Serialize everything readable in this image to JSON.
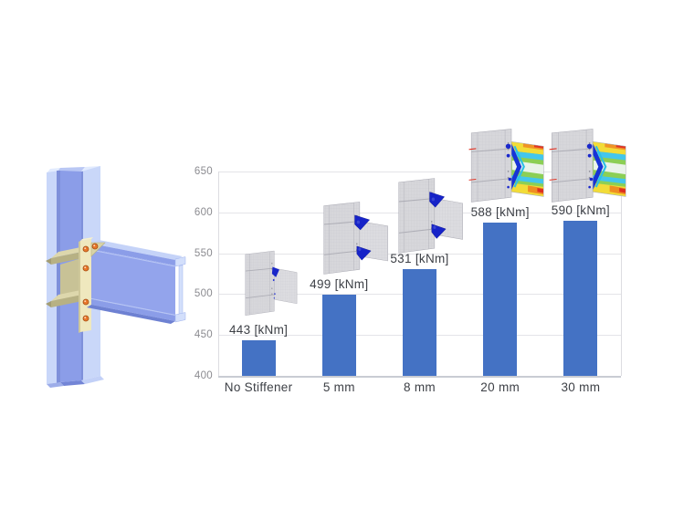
{
  "figure": {
    "background": "#ffffff",
    "left_graphic": "3D render of a bolted steel beam-to-column end-plate connection"
  },
  "model_3d": {
    "colors": {
      "flange_light": "#c9d7f9",
      "top_face": "#e2ebfe",
      "web_medium": "#8b9de8",
      "beam_web": "#93a4ec",
      "beam_top_face": "#c5d3f8",
      "underside": "#6e81d2",
      "edge_shadow": "#7e90da",
      "end_face": "#d3dffb",
      "plate_cream": "#efe8be",
      "plate_edge": "#cfc89a",
      "stiffener_tan": "#ddd7ac",
      "stiffener_edge": "#b7b184",
      "doubler_tan": "#c8c296",
      "bolt_orange": "#e8772b",
      "bolt_rim": "#a34d15"
    }
  },
  "chart_data": {
    "type": "bar",
    "title": "",
    "xlabel": "",
    "ylabel": "",
    "unit": "kNm",
    "categories": [
      "No Stiffener",
      "5 mm",
      "8 mm",
      "20 mm",
      "30 mm"
    ],
    "values": [
      443,
      499,
      531,
      588,
      590
    ],
    "value_labels": [
      "443 [kNm]",
      "499 [kNm]",
      "531 [kNm]",
      "588 [kNm]",
      "590 [kNm]"
    ],
    "ylim": [
      400,
      650
    ],
    "yticks": [
      400,
      450,
      500,
      550,
      600,
      650
    ],
    "grid": true,
    "legend": "none",
    "bar_color": "#4472c4",
    "tick_text_color": "#8b8b90",
    "label_text_color": "#3d4046",
    "thumbnails": [
      {
        "name": "fea-thumbnail-no-stiffener",
        "variant": "blue-small"
      },
      {
        "name": "fea-thumbnail-5mm",
        "variant": "blue-two"
      },
      {
        "name": "fea-thumbnail-8mm",
        "variant": "blue-two"
      },
      {
        "name": "fea-thumbnail-20mm",
        "variant": "rainbow"
      },
      {
        "name": "fea-thumbnail-30mm",
        "variant": "rainbow"
      }
    ],
    "fea_colors": {
      "mesh_gray": "#d7d7db",
      "stress_blue": "#1623c8",
      "stress_cyan": "#44c6ec",
      "stress_green": "#8ccf55",
      "stress_yellow": "#f2dc38",
      "stress_orange": "#f09426",
      "stress_red": "#e13524"
    }
  }
}
